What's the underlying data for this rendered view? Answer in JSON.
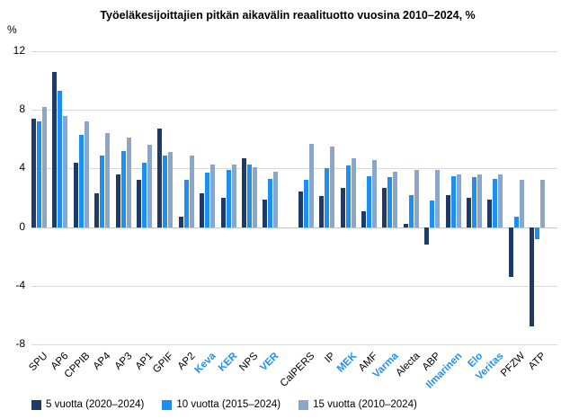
{
  "title": "Työeläkesijoittajien pitkän aikavälin reaalituotto vuosina 2010–2024, %",
  "y_axis_unit": "%",
  "chart_data": {
    "type": "bar",
    "title": "Työeläkesijoittajien pitkän aikavälin reaalituotto vuosina 2010–2024, %",
    "ylabel": "%",
    "ylim": [
      -8,
      12
    ],
    "yticks": [
      12,
      8,
      4,
      0,
      -4,
      -8
    ],
    "grid": true,
    "legend_position": "bottom",
    "gap_after_category": "VER",
    "categories": [
      "SPU",
      "AP6",
      "CPPIB",
      "AP4",
      "AP3",
      "AP1",
      "GPIF",
      "AP2",
      "Keva",
      "KER",
      "NPS",
      "VER",
      "CalPERS",
      "IP",
      "MEK",
      "AMF",
      "Varma",
      "Alecta",
      "ABP",
      "Ilmarinen",
      "Elo",
      "Veritas",
      "PFZW",
      "ATP"
    ],
    "highlighted_categories": [
      "Keva",
      "KER",
      "VER",
      "MEK",
      "Varma",
      "Ilmarinen",
      "Elo",
      "Veritas"
    ],
    "highlight_color": "#1e8ff2",
    "series": [
      {
        "name": "5 vuotta (2020–2024)",
        "color": "#1e3a68",
        "values": [
          7.4,
          10.6,
          4.4,
          2.3,
          3.6,
          3.2,
          6.7,
          0.7,
          2.3,
          2.0,
          4.7,
          1.9,
          2.4,
          2.1,
          2.7,
          1.1,
          2.7,
          0.2,
          -1.2,
          2.2,
          2.0,
          1.9,
          -3.4,
          -6.8
        ]
      },
      {
        "name": "10 vuotta (2015–2024)",
        "color": "#1e8ff2",
        "values": [
          7.2,
          9.3,
          6.3,
          4.9,
          5.2,
          4.4,
          4.9,
          3.2,
          3.7,
          3.9,
          4.3,
          3.3,
          3.2,
          4.0,
          4.2,
          3.5,
          3.4,
          2.2,
          1.8,
          3.5,
          3.4,
          3.3,
          0.7,
          -0.8
        ]
      },
      {
        "name": "15 vuotta (2010–2024)",
        "color": "#8aa6c9",
        "values": [
          8.2,
          7.6,
          7.2,
          6.4,
          6.1,
          5.6,
          5.1,
          4.9,
          4.3,
          4.3,
          4.1,
          3.8,
          5.7,
          5.5,
          4.7,
          4.6,
          3.8,
          3.9,
          3.9,
          3.6,
          3.6,
          3.6,
          3.2,
          3.2
        ]
      }
    ]
  }
}
